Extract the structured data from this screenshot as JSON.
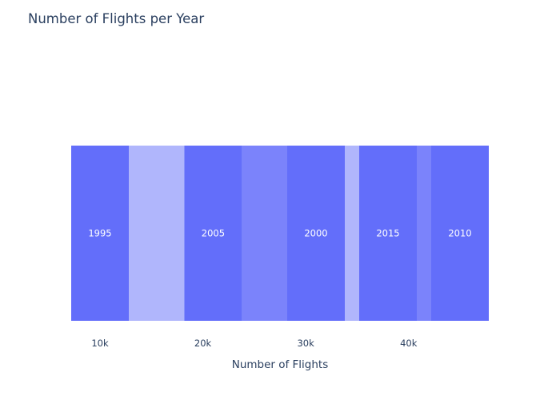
{
  "chart_data": {
    "type": "funnel-area",
    "title": "Number of Flights per Year",
    "xlabel": "Number of Flights",
    "x_ticks": [
      {
        "value": 10000,
        "label": "10k"
      },
      {
        "value": 20000,
        "label": "20k"
      },
      {
        "value": 30000,
        "label": "30k"
      },
      {
        "value": 40000,
        "label": "40k"
      }
    ],
    "xlim": [
      7200,
      47800
    ],
    "bars": [
      {
        "label": "1995",
        "start": 7200,
        "end": 12800
      },
      {
        "label": "2005",
        "start": 18200,
        "end": 23800
      },
      {
        "label": "2000",
        "start": 28200,
        "end": 33800
      },
      {
        "label": "2015",
        "start": 35200,
        "end": 40800
      },
      {
        "label": "2010",
        "start": 42200,
        "end": 47800
      }
    ],
    "connectors": [
      {
        "start": 12800,
        "end": 18200
      },
      {
        "start": 23800,
        "end": 28200
      },
      {
        "start": 33800,
        "end": 35200
      },
      {
        "start": 40800,
        "end": 42200
      }
    ],
    "colors": {
      "bar": "#636efa",
      "connector_light": "#b0b6fc",
      "connector_mid": "#7b83fb",
      "text": "#2a3f5f",
      "bar_text": "#ffffff"
    }
  }
}
